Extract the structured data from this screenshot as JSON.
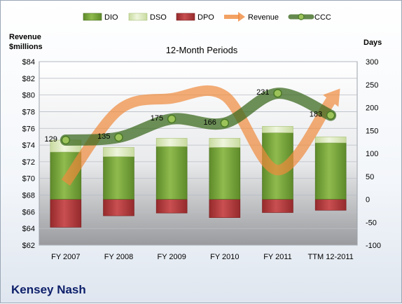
{
  "company": "Kensey Nash",
  "chart_data": {
    "type": "bar",
    "title": "12-Month Periods",
    "categories": [
      "FY 2007",
      "FY 2008",
      "FY 2009",
      "FY 2010",
      "FY 2011",
      "TTM 12-2011"
    ],
    "legend": {
      "position": "top",
      "items": [
        "DIO",
        "DSO",
        "DPO",
        "Revenue",
        "CCC"
      ]
    },
    "left_axis": {
      "label_line1": "Revenue",
      "label_line2": "$millions",
      "range": [
        62,
        84
      ],
      "ticks": [
        "$84",
        "$82",
        "$80",
        "$78",
        "$76",
        "$74",
        "$72",
        "$70",
        "$68",
        "$66",
        "$64",
        "$62"
      ]
    },
    "right_axis": {
      "label": "Days",
      "range": [
        -100,
        300
      ],
      "ticks": [
        "300",
        "250",
        "200",
        "150",
        "100",
        "50",
        "0",
        "-50",
        "-100"
      ]
    },
    "series": [
      {
        "name": "DIO",
        "axis": "right",
        "color": "#77a33a",
        "values": [
          103,
          93,
          115,
          113,
          145,
          123
        ]
      },
      {
        "name": "DSO",
        "axis": "right",
        "color": "#dde9c0",
        "values": [
          26,
          20,
          18,
          20,
          14,
          13
        ]
      },
      {
        "name": "DPO",
        "axis": "right",
        "color": "#b23a3c",
        "values": [
          -61,
          -36,
          -30,
          -40,
          -29,
          -24
        ]
      },
      {
        "name": "Revenue",
        "axis": "left",
        "color": "#f0a060",
        "values": [
          69.5,
          78.2,
          79.6,
          79.9,
          71.0,
          79.3
        ]
      },
      {
        "name": "CCC",
        "axis": "right",
        "color": "#4d7a2c",
        "values": [
          129,
          135,
          175,
          166,
          231,
          183
        ]
      }
    ],
    "ccc_labels": [
      "129",
      "135",
      "175",
      "166",
      "231",
      "183"
    ],
    "grid": true
  }
}
